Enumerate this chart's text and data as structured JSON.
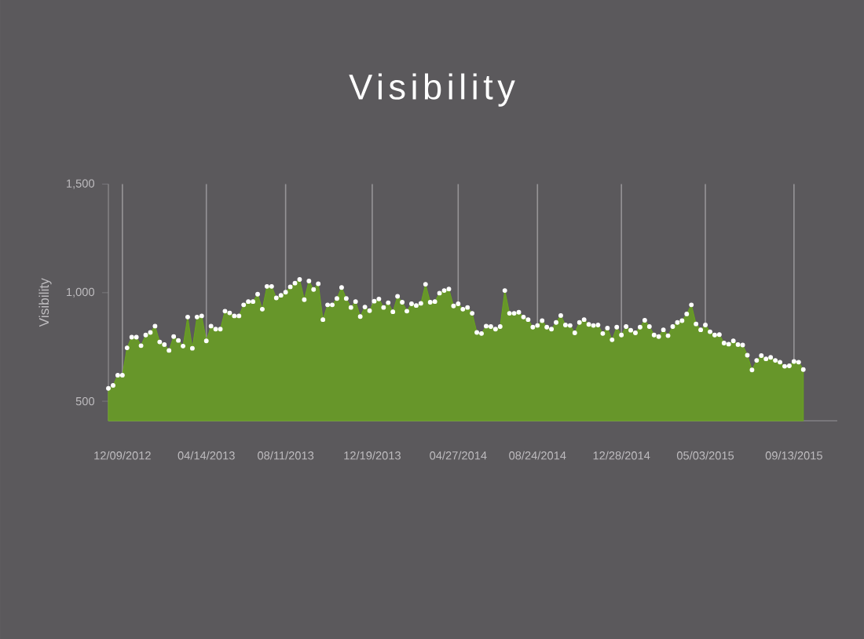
{
  "chart_data": {
    "type": "area",
    "title": "Visibility",
    "ylabel": "Visibility",
    "x": [
      "2012-11-18",
      "2012-11-25",
      "2012-12-02",
      "2012-12-09",
      "2012-12-16",
      "2012-12-23",
      "2012-12-30",
      "2013-01-06",
      "2013-01-13",
      "2013-01-20",
      "2013-01-27",
      "2013-02-03",
      "2013-02-10",
      "2013-02-17",
      "2013-02-24",
      "2013-03-03",
      "2013-03-10",
      "2013-03-17",
      "2013-03-24",
      "2013-03-31",
      "2013-04-07",
      "2013-04-14",
      "2013-04-21",
      "2013-04-28",
      "2013-05-05",
      "2013-05-12",
      "2013-05-19",
      "2013-05-26",
      "2013-06-02",
      "2013-06-09",
      "2013-06-16",
      "2013-06-23",
      "2013-06-30",
      "2013-07-07",
      "2013-07-14",
      "2013-07-21",
      "2013-07-28",
      "2013-08-04",
      "2013-08-11",
      "2013-08-18",
      "2013-08-25",
      "2013-09-01",
      "2013-09-08",
      "2013-09-15",
      "2013-09-22",
      "2013-09-29",
      "2013-10-06",
      "2013-10-13",
      "2013-10-20",
      "2013-10-27",
      "2013-11-03",
      "2013-11-10",
      "2013-11-17",
      "2013-11-24",
      "2013-12-01",
      "2013-12-08",
      "2013-12-15",
      "2013-12-22",
      "2013-12-29",
      "2014-01-05",
      "2014-01-12",
      "2014-01-19",
      "2014-01-26",
      "2014-02-02",
      "2014-02-09",
      "2014-02-16",
      "2014-02-23",
      "2014-03-02",
      "2014-03-09",
      "2014-03-16",
      "2014-03-23",
      "2014-03-30",
      "2014-04-06",
      "2014-04-13",
      "2014-04-20",
      "2014-04-27",
      "2014-05-04",
      "2014-05-11",
      "2014-05-18",
      "2014-05-25",
      "2014-06-01",
      "2014-06-08",
      "2014-06-15",
      "2014-06-22",
      "2014-06-29",
      "2014-07-06",
      "2014-07-13",
      "2014-07-20",
      "2014-07-27",
      "2014-08-03",
      "2014-08-10",
      "2014-08-17",
      "2014-08-24",
      "2014-08-31",
      "2014-09-07",
      "2014-09-14",
      "2014-09-21",
      "2014-09-28",
      "2014-10-05",
      "2014-10-12",
      "2014-10-19",
      "2014-10-26",
      "2014-11-02",
      "2014-11-09",
      "2014-11-16",
      "2014-11-23",
      "2014-11-30",
      "2014-12-07",
      "2014-12-14",
      "2014-12-21",
      "2014-12-28",
      "2015-01-04",
      "2015-01-11",
      "2015-01-18",
      "2015-01-25",
      "2015-02-01",
      "2015-02-08",
      "2015-02-15",
      "2015-02-22",
      "2015-03-01",
      "2015-03-08",
      "2015-03-15",
      "2015-03-22",
      "2015-03-29",
      "2015-04-05",
      "2015-04-12",
      "2015-04-19",
      "2015-04-26",
      "2015-05-03",
      "2015-05-10",
      "2015-05-17",
      "2015-05-24",
      "2015-05-31",
      "2015-06-07",
      "2015-06-14",
      "2015-06-21",
      "2015-06-28",
      "2015-07-05",
      "2015-07-12",
      "2015-07-19",
      "2015-07-26",
      "2015-08-02",
      "2015-08-09",
      "2015-08-16",
      "2015-08-23",
      "2015-08-30",
      "2015-09-06",
      "2015-09-13",
      "2015-09-20",
      "2015-09-27"
    ],
    "series": [
      {
        "color": "#6aa51e",
        "values": [
          559,
          573,
          620,
          620,
          746,
          795,
          795,
          756,
          805,
          817,
          846,
          773,
          761,
          734,
          798,
          780,
          754,
          888,
          744,
          888,
          893,
          778,
          846,
          832,
          832,
          915,
          907,
          893,
          893,
          944,
          959,
          959,
          993,
          924,
          1029,
          1029,
          976,
          988,
          1002,
          1027,
          1044,
          1061,
          968,
          1054,
          1015,
          1041,
          876,
          944,
          944,
          973,
          1024,
          973,
          932,
          959,
          890,
          934,
          917,
          961,
          971,
          932,
          954,
          912,
          983,
          956,
          915,
          949,
          941,
          951,
          1039,
          956,
          959,
          998,
          1010,
          1017,
          939,
          949,
          924,
          932,
          905,
          817,
          812,
          846,
          844,
          832,
          844,
          1010,
          905,
          905,
          910,
          888,
          876,
          841,
          849,
          871,
          841,
          832,
          863,
          895,
          851,
          849,
          815,
          863,
          876,
          854,
          849,
          851,
          812,
          837,
          783,
          841,
          805,
          844,
          827,
          815,
          841,
          873,
          844,
          805,
          798,
          829,
          802,
          844,
          863,
          871,
          902,
          944,
          856,
          829,
          851,
          820,
          805,
          807,
          768,
          763,
          778,
          761,
          759,
          712,
          644,
          688,
          710,
          695,
          702,
          688,
          680,
          661,
          663,
          683,
          680,
          646
        ]
      }
    ],
    "xlim": [
      "2012-11-18",
      "2015-11-17"
    ],
    "xticks": [
      {
        "value": "2012-12-09",
        "label": "12/09/2012"
      },
      {
        "value": "2013-04-14",
        "label": "04/14/2013"
      },
      {
        "value": "2013-08-11",
        "label": "08/11/2013"
      },
      {
        "value": "2013-12-19",
        "label": "12/19/2013"
      },
      {
        "value": "2014-04-27",
        "label": "04/27/2014"
      },
      {
        "value": "2014-08-24",
        "label": "08/24/2014"
      },
      {
        "value": "2014-12-28",
        "label": "12/28/2014"
      },
      {
        "value": "2015-05-03",
        "label": "05/03/2015"
      },
      {
        "value": "2015-09-13",
        "label": "09/13/2015"
      }
    ],
    "ylim": [
      410,
      1500
    ],
    "yticks": [
      {
        "value": 500,
        "label": "500"
      },
      {
        "value": 1000,
        "label": "1,000"
      },
      {
        "value": 1500,
        "label": "1,500"
      }
    ],
    "grid": "x",
    "marker": "circle"
  }
}
